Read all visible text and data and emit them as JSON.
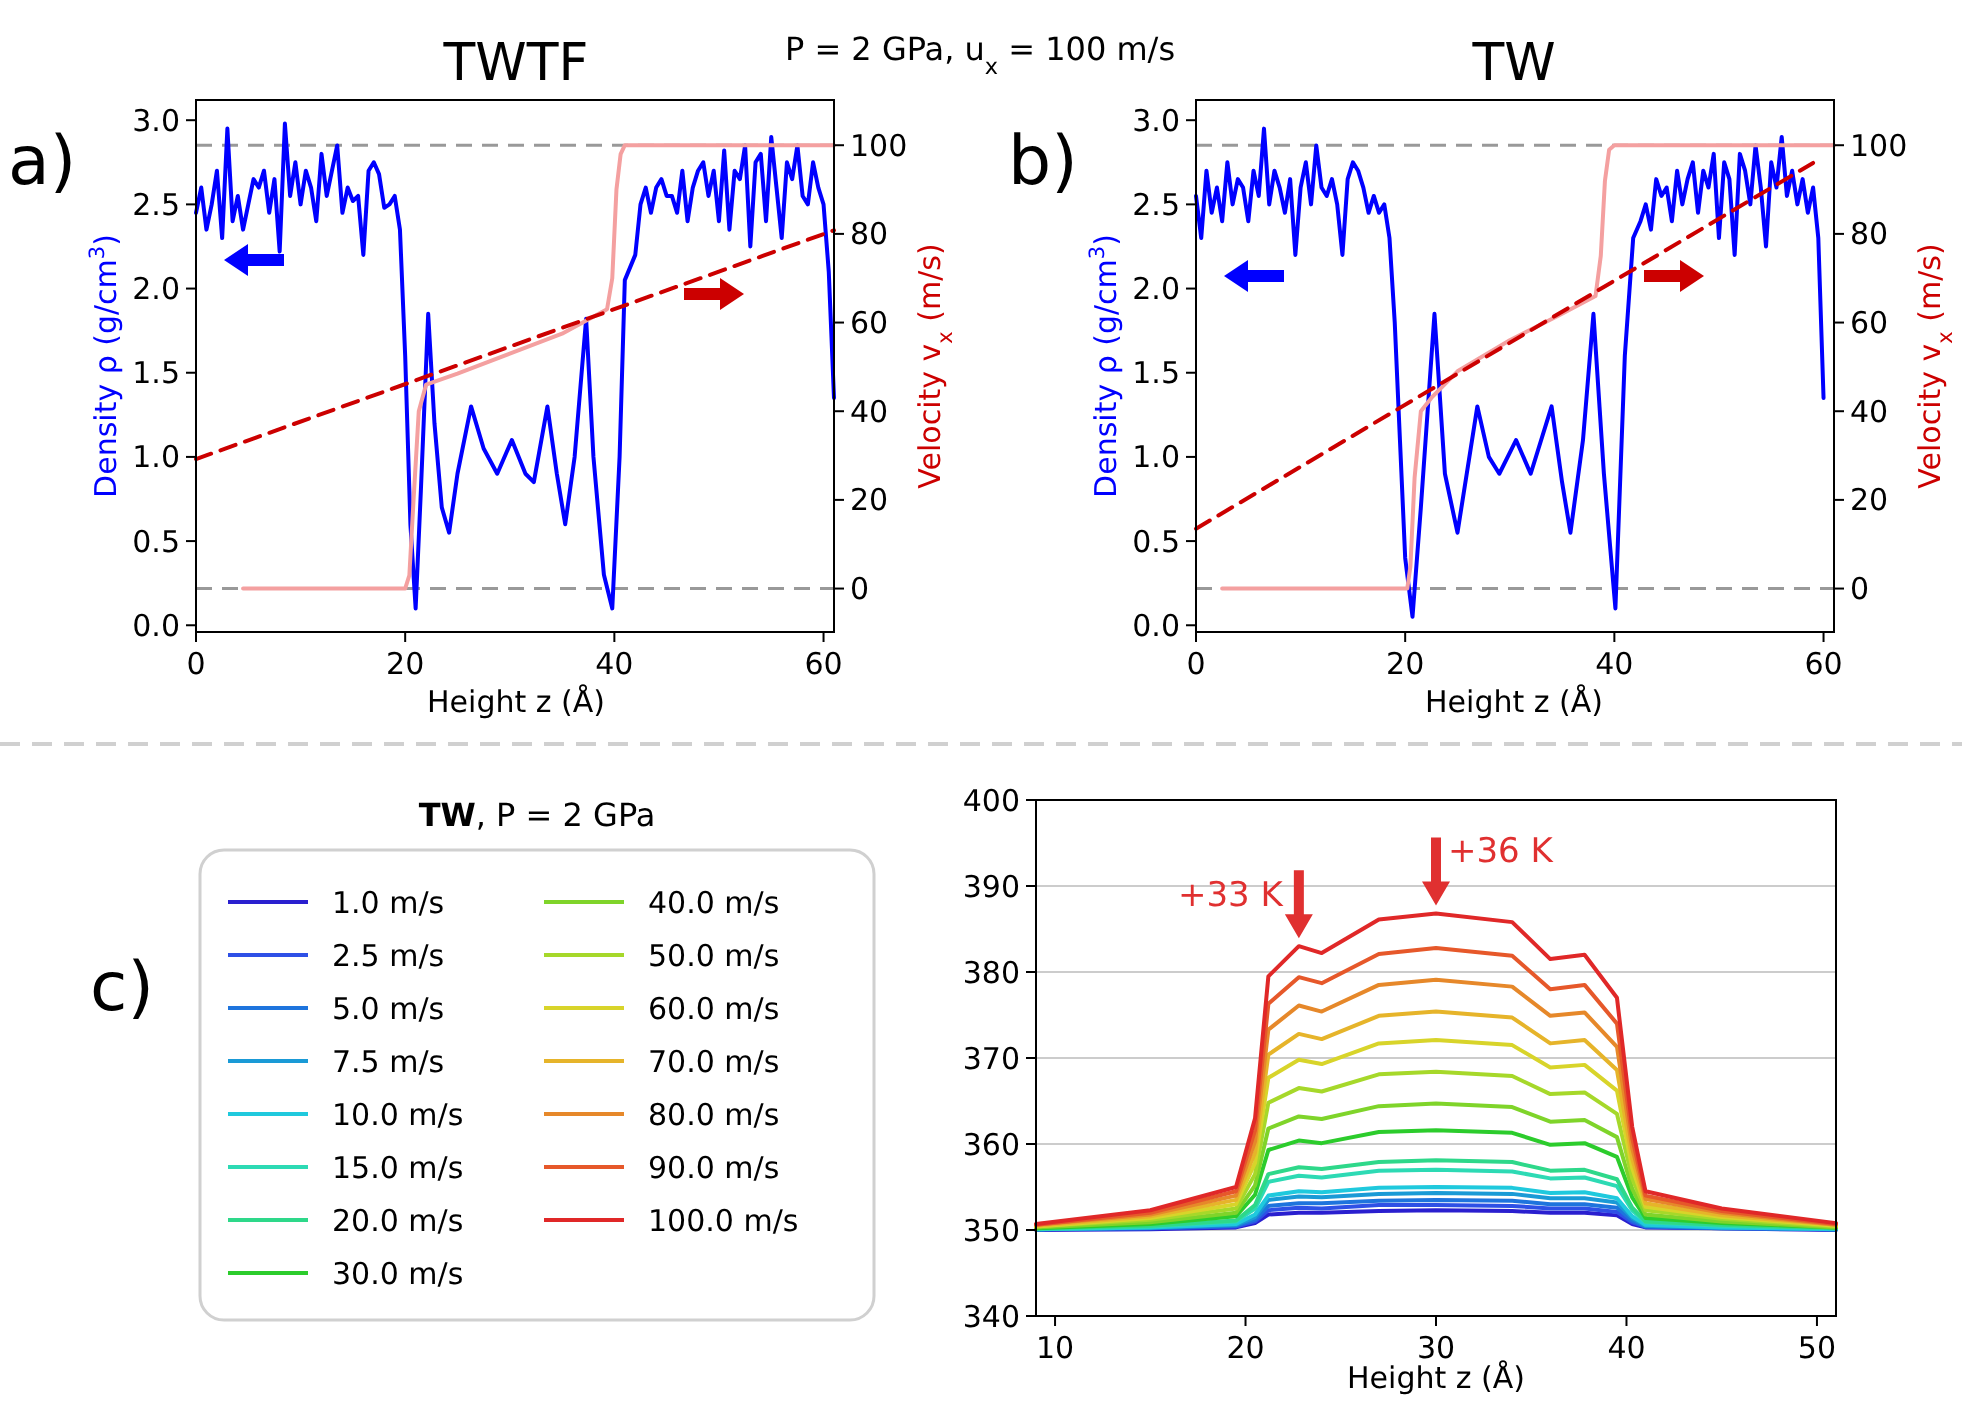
{
  "chart_data": [
    {
      "type": "line",
      "title": "TWTF",
      "subtitle": "P = 2 GPa, u$_{x}$ = 100 m/s",
      "xlabel": "Height z (Å)",
      "ylabel": "Density ρ (g/cm$^{3}$)",
      "y2label": "Velocity v$_{x}$ (m/s)",
      "annotations": [
        "a)"
      ],
      "xlim": [
        0,
        61
      ],
      "xticks": [
        0,
        20,
        40,
        60
      ],
      "ylim": [
        -0.04,
        3.12
      ],
      "yticks": [
        {
          "value": 0,
          "label": "0.0"
        },
        {
          "value": 0.5,
          "label": "0.5"
        },
        {
          "value": 1,
          "label": "1.0"
        },
        {
          "value": 1.5,
          "label": "1.5"
        },
        {
          "value": 2,
          "label": "2.0"
        },
        {
          "value": 2.5,
          "label": "2.5"
        },
        {
          "value": 3,
          "label": "3.0"
        }
      ],
      "y2lim": [
        -9.8,
        110.2
      ],
      "y2ticks": [
        0,
        20,
        40,
        60,
        80,
        100
      ],
      "ref_lines": [
        {
          "axis": "y2",
          "value": 0,
          "color": "#999999",
          "line_style": "dashed"
        },
        {
          "axis": "y2",
          "value": 100,
          "color": "#999999",
          "line_style": "dashed"
        }
      ],
      "series": [
        {
          "color": "#0000ff",
          "x": [
            0,
            0.5,
            1,
            1.5,
            2,
            2.5,
            3,
            3.5,
            4,
            4.5,
            5,
            5.5,
            6,
            6.5,
            7,
            7.5,
            8,
            8.5,
            9,
            9.5,
            10,
            10.5,
            11,
            11.5,
            12,
            12.5,
            13,
            13.5,
            14,
            14.5,
            15,
            15.5,
            16,
            16.5,
            17,
            17.5,
            18,
            18.5,
            19,
            19.5,
            20,
            20.5,
            21,
            21.5,
            22.2,
            22.8,
            23.5,
            24.2,
            25,
            26.3,
            27.5,
            28.8,
            30.2,
            31.5,
            32.3,
            33.6,
            34.5,
            35.3,
            36.2,
            37.3,
            38,
            39,
            39.8,
            40.5,
            41,
            42,
            42.5,
            43,
            43.5,
            44,
            44.5,
            45,
            45.5,
            46,
            46.5,
            47,
            47.5,
            48,
            48.5,
            49,
            49.5,
            50,
            50.5,
            51,
            51.5,
            52,
            52.5,
            53,
            53.5,
            54,
            54.5,
            55,
            55.5,
            56,
            56.5,
            57,
            57.5,
            58,
            58.5,
            59,
            59.5,
            60,
            60.5,
            61
          ],
          "values": [
            2.45,
            2.6,
            2.35,
            2.5,
            2.7,
            2.3,
            2.95,
            2.4,
            2.55,
            2.35,
            2.5,
            2.65,
            2.6,
            2.7,
            2.45,
            2.65,
            2.22,
            2.98,
            2.55,
            2.75,
            2.5,
            2.7,
            2.6,
            2.4,
            2.8,
            2.55,
            2.7,
            2.85,
            2.45,
            2.6,
            2.52,
            2.55,
            2.2,
            2.7,
            2.75,
            2.68,
            2.48,
            2.5,
            2.55,
            2.35,
            1.6,
            0.6,
            0.1,
            0.8,
            1.85,
            1.2,
            0.7,
            0.55,
            0.9,
            1.3,
            1.05,
            0.9,
            1.1,
            0.9,
            0.85,
            1.3,
            0.9,
            0.6,
            1.0,
            1.82,
            1.0,
            0.3,
            0.1,
            1.0,
            2.05,
            2.2,
            2.5,
            2.6,
            2.45,
            2.6,
            2.65,
            2.55,
            2.55,
            2.45,
            2.7,
            2.4,
            2.6,
            2.7,
            2.75,
            2.55,
            2.7,
            2.4,
            2.82,
            2.35,
            2.7,
            2.65,
            2.85,
            2.25,
            2.75,
            2.8,
            2.4,
            2.9,
            2.6,
            2.3,
            2.75,
            2.65,
            2.85,
            2.55,
            2.5,
            2.75,
            2.6,
            2.5,
            2.1,
            1.35
          ]
        },
        {
          "color": "#f4a0a0",
          "axis": "y2",
          "x": [
            4.5,
            20,
            20.4,
            20.8,
            21.3,
            22,
            25,
            30,
            35,
            39.3,
            39.8,
            40.2,
            40.6,
            41,
            61
          ],
          "values": [
            0,
            0,
            3,
            20,
            40,
            46,
            48.5,
            53,
            57.5,
            63,
            70,
            90,
            98,
            100,
            100
          ]
        },
        {
          "color": "#cc0000",
          "axis": "y2",
          "line_style": "dashed",
          "x": [
            0,
            61
          ],
          "values": [
            29.2,
            80.8
          ]
        }
      ]
    },
    {
      "type": "line",
      "title": "TW",
      "xlabel": "Height z (Å)",
      "ylabel": "Density ρ (g/cm$^{3}$)",
      "y2label": "Velocity v$_{x}$ (m/s)",
      "annotations": [
        "b)"
      ],
      "xlim": [
        0,
        61
      ],
      "xticks": [
        0,
        20,
        40,
        60
      ],
      "ylim": [
        -0.04,
        3.12
      ],
      "yticks": [
        {
          "value": 0,
          "label": "0.0"
        },
        {
          "value": 0.5,
          "label": "0.5"
        },
        {
          "value": 1,
          "label": "1.0"
        },
        {
          "value": 1.5,
          "label": "1.5"
        },
        {
          "value": 2,
          "label": "2.0"
        },
        {
          "value": 2.5,
          "label": "2.5"
        },
        {
          "value": 3,
          "label": "3.0"
        }
      ],
      "y2lim": [
        -9.8,
        110.2
      ],
      "y2ticks": [
        0,
        20,
        40,
        60,
        80,
        100
      ],
      "ref_lines": [
        {
          "axis": "y2",
          "value": 0,
          "color": "#999999",
          "line_style": "dashed"
        },
        {
          "axis": "y2",
          "value": 100,
          "color": "#999999",
          "line_style": "dashed"
        }
      ],
      "series": [
        {
          "color": "#0000ff",
          "x": [
            0,
            0.5,
            1,
            1.5,
            2,
            2.5,
            3,
            3.5,
            4,
            4.5,
            5,
            5.5,
            6,
            6.5,
            7,
            7.5,
            8,
            8.5,
            9,
            9.5,
            10,
            10.5,
            11,
            11.5,
            12,
            12.5,
            13,
            13.5,
            14,
            14.5,
            15,
            15.5,
            16,
            16.5,
            17,
            17.5,
            18,
            18.5,
            19,
            19.5,
            20,
            20.7,
            21.5,
            22.8,
            23.8,
            25,
            26.9,
            28,
            29,
            30.6,
            32,
            34,
            35,
            35.8,
            37,
            38,
            39,
            40.1,
            41,
            41.8,
            42.5,
            43,
            43.5,
            44,
            44.5,
            45,
            45.5,
            46,
            46.5,
            47,
            47.5,
            48,
            48.5,
            49,
            49.5,
            50,
            50.5,
            51,
            51.5,
            52,
            52.5,
            53,
            53.5,
            54,
            54.5,
            55,
            55.5,
            56,
            56.5,
            57,
            57.5,
            58,
            58.5,
            59,
            59.5,
            60
          ],
          "values": [
            2.55,
            2.3,
            2.7,
            2.45,
            2.6,
            2.4,
            2.75,
            2.5,
            2.65,
            2.6,
            2.4,
            2.7,
            2.55,
            2.95,
            2.5,
            2.7,
            2.6,
            2.45,
            2.65,
            2.2,
            2.6,
            2.75,
            2.5,
            2.85,
            2.6,
            2.55,
            2.65,
            2.5,
            2.2,
            2.65,
            2.75,
            2.7,
            2.6,
            2.45,
            2.55,
            2.45,
            2.5,
            2.3,
            1.8,
            1.1,
            0.4,
            0.05,
            0.7,
            1.85,
            0.9,
            0.55,
            1.3,
            1.0,
            0.9,
            1.1,
            0.9,
            1.3,
            0.85,
            0.55,
            1.1,
            1.85,
            0.9,
            0.1,
            1.6,
            2.3,
            2.4,
            2.5,
            2.35,
            2.65,
            2.55,
            2.6,
            2.4,
            2.7,
            2.5,
            2.65,
            2.75,
            2.45,
            2.7,
            2.6,
            2.8,
            2.3,
            2.75,
            2.65,
            2.2,
            2.8,
            2.7,
            2.5,
            2.85,
            2.6,
            2.25,
            2.75,
            2.6,
            2.9,
            2.55,
            2.7,
            2.5,
            2.65,
            2.45,
            2.6,
            2.3,
            1.35
          ]
        },
        {
          "color": "#f4a0a0",
          "axis": "y2",
          "x": [
            2.5,
            20.2,
            20.5,
            20.9,
            21.5,
            22.5,
            25,
            30,
            35,
            38.2,
            38.7,
            39.1,
            39.5,
            40,
            61
          ],
          "values": [
            0,
            0,
            5,
            25,
            40,
            43,
            49,
            56,
            62,
            66,
            75,
            92,
            99,
            100,
            100
          ]
        },
        {
          "color": "#cc0000",
          "axis": "y2",
          "line_style": "dashed",
          "x": [
            0,
            59
          ],
          "values": [
            13.5,
            96
          ]
        }
      ]
    },
    {
      "type": "line",
      "xlabel": "Height z (Å)",
      "legend_title": "TW, P = 2 GPa",
      "legend": "left",
      "grid": "y",
      "xlim": [
        9,
        51
      ],
      "xticks": [
        10,
        20,
        30,
        40,
        50
      ],
      "ylim": [
        340,
        400
      ],
      "yticks": [
        340,
        350,
        360,
        370,
        380,
        390,
        400
      ],
      "annotations": [
        "c)",
        {
          "text": "+33 K",
          "x": 22.8,
          "y": 383
        },
        {
          "text": "+36 K",
          "x": 30,
          "y": 386.8
        }
      ],
      "x": [
        9,
        15,
        19.5,
        20.5,
        21.2,
        22.8,
        24,
        27,
        30,
        34,
        36,
        37.8,
        39.5,
        40.3,
        41,
        45,
        51
      ],
      "series": [
        {
          "name": "1.0 m/s",
          "color": "#2a1fcf",
          "values": [
            350.0,
            350.1,
            350.3,
            350.8,
            351.8,
            352.0,
            352.0,
            352.2,
            352.3,
            352.2,
            352.0,
            352.0,
            351.7,
            350.7,
            350.3,
            350.2,
            350.0
          ]
        },
        {
          "name": "2.5 m/s",
          "color": "#2e50e6",
          "values": [
            350.1,
            350.2,
            350.4,
            351.0,
            352.3,
            352.6,
            352.5,
            352.9,
            352.9,
            352.8,
            352.5,
            352.5,
            352.1,
            350.9,
            350.4,
            350.2,
            350.1
          ]
        },
        {
          "name": "5.0 m/s",
          "color": "#1e74dd",
          "values": [
            350.1,
            350.2,
            350.5,
            351.2,
            352.8,
            353.1,
            353.1,
            353.4,
            353.5,
            353.4,
            353.0,
            353.0,
            352.6,
            351.1,
            350.4,
            350.2,
            350.1
          ]
        },
        {
          "name": "7.5 m/s",
          "color": "#1a9ad6",
          "values": [
            350.1,
            350.3,
            350.6,
            351.5,
            353.5,
            353.9,
            353.8,
            354.2,
            354.3,
            354.2,
            353.7,
            353.7,
            353.2,
            351.4,
            350.5,
            350.3,
            350.1
          ]
        },
        {
          "name": "10.0 m/s",
          "color": "#1fc9dd",
          "values": [
            350.1,
            350.3,
            350.7,
            351.8,
            354.0,
            354.5,
            354.4,
            354.9,
            355.0,
            354.9,
            354.3,
            354.4,
            353.7,
            351.6,
            350.6,
            350.3,
            350.1
          ]
        },
        {
          "name": "15.0 m/s",
          "color": "#2ddab4",
          "values": [
            350.1,
            350.4,
            351.0,
            352.5,
            355.6,
            356.3,
            356.1,
            356.9,
            357.0,
            356.8,
            356.0,
            356.1,
            355.1,
            352.3,
            350.9,
            350.5,
            350.2
          ]
        },
        {
          "name": "20.0 m/s",
          "color": "#2ed88a",
          "values": [
            350.2,
            350.5,
            351.1,
            352.9,
            356.5,
            357.3,
            357.1,
            357.9,
            358.1,
            357.9,
            356.9,
            357.0,
            355.9,
            352.6,
            351.0,
            350.6,
            350.2
          ]
        },
        {
          "name": "30.0 m/s",
          "color": "#2ccc2c",
          "values": [
            350.2,
            350.7,
            351.6,
            354.1,
            359.3,
            360.4,
            360.1,
            361.4,
            361.6,
            361.3,
            359.9,
            360.1,
            358.5,
            353.8,
            351.4,
            350.8,
            350.3
          ]
        },
        {
          "name": "40.0 m/s",
          "color": "#7fd42a",
          "values": [
            350.3,
            350.9,
            352.0,
            355.2,
            361.8,
            363.2,
            362.9,
            364.4,
            364.7,
            364.3,
            362.6,
            362.8,
            360.8,
            354.8,
            351.8,
            351.0,
            350.3
          ]
        },
        {
          "name": "50.0 m/s",
          "color": "#a6d82a",
          "values": [
            350.4,
            351.2,
            352.5,
            356.5,
            364.8,
            366.5,
            366.1,
            368.1,
            368.4,
            367.9,
            365.8,
            366.0,
            363.5,
            356.0,
            352.3,
            351.3,
            350.4
          ]
        },
        {
          "name": "60.0 m/s",
          "color": "#d8d42a",
          "values": [
            350.4,
            351.4,
            353.0,
            357.8,
            367.7,
            369.8,
            369.3,
            371.7,
            372.1,
            371.5,
            368.9,
            369.2,
            366.2,
            357.2,
            352.7,
            351.5,
            350.5
          ]
        },
        {
          "name": "70.0 m/s",
          "color": "#e6b42a",
          "values": [
            350.5,
            351.6,
            353.5,
            359.0,
            370.4,
            372.8,
            372.2,
            374.9,
            375.4,
            374.7,
            371.7,
            372.1,
            368.6,
            358.3,
            353.1,
            351.7,
            350.6
          ]
        },
        {
          "name": "80.0 m/s",
          "color": "#e6882a",
          "values": [
            350.6,
            351.8,
            354.0,
            360.3,
            373.3,
            376.1,
            375.4,
            378.5,
            379.1,
            378.3,
            374.9,
            375.3,
            371.3,
            359.5,
            353.6,
            352.0,
            350.6
          ]
        },
        {
          "name": "90.0 m/s",
          "color": "#e6582a",
          "values": [
            350.6,
            352.0,
            354.5,
            361.6,
            376.3,
            379.4,
            378.7,
            382.1,
            382.8,
            381.9,
            378.0,
            378.5,
            374.0,
            360.7,
            354.0,
            352.2,
            350.7
          ]
        },
        {
          "name": "100.0 m/s",
          "color": "#e02828",
          "values": [
            350.7,
            352.3,
            355.0,
            363.0,
            379.5,
            383.0,
            382.2,
            386.1,
            386.8,
            385.8,
            381.5,
            382.0,
            377.0,
            362.0,
            354.5,
            352.5,
            350.8
          ]
        }
      ]
    }
  ]
}
